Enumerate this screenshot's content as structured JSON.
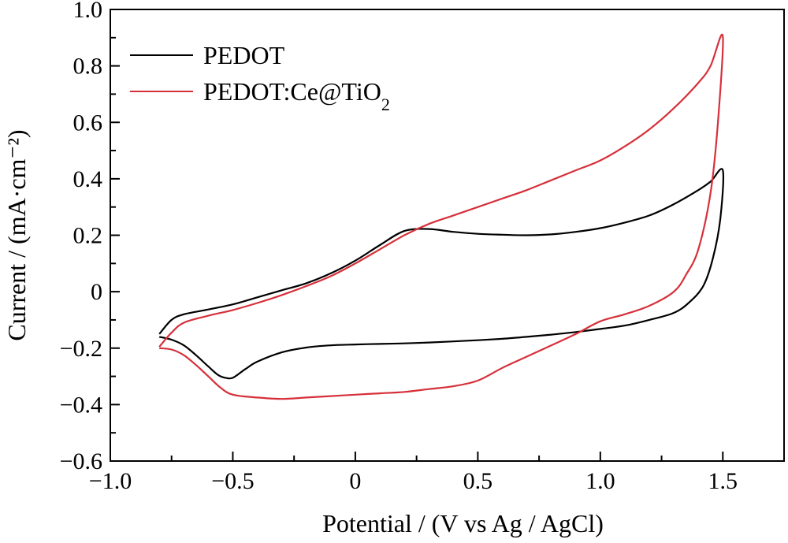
{
  "chart_data": {
    "type": "line",
    "title": "",
    "xlabel": "Potential / (V vs Ag / AgCl)",
    "ylabel": "Current / (mA·cm⁻²)",
    "xlim": [
      -1.0,
      1.75
    ],
    "ylim": [
      -0.6,
      1.0
    ],
    "xticks": [
      -1.0,
      -0.5,
      0,
      0.5,
      1.0,
      1.5
    ],
    "xtick_labels": [
      "−1.0",
      "−0.5",
      "0",
      "0.5",
      "1.0",
      "1.5"
    ],
    "yticks": [
      -0.6,
      -0.4,
      -0.2,
      0,
      0.2,
      0.4,
      0.6,
      0.8,
      1.0
    ],
    "ytick_labels": [
      "−0.6",
      "−0.4",
      "−0.2",
      "0",
      "0.2",
      "0.4",
      "0.6",
      "0.8",
      "1.0"
    ],
    "grid": false,
    "legend_position": "top-left",
    "series": [
      {
        "name": "PEDOT",
        "color": "#000000",
        "points": [
          [
            -0.8,
            -0.15
          ],
          [
            -0.75,
            -0.1
          ],
          [
            -0.7,
            -0.08
          ],
          [
            -0.6,
            -0.063
          ],
          [
            -0.5,
            -0.045
          ],
          [
            -0.4,
            -0.02
          ],
          [
            -0.3,
            0.005
          ],
          [
            -0.2,
            0.03
          ],
          [
            -0.1,
            0.065
          ],
          [
            0.0,
            0.11
          ],
          [
            0.1,
            0.165
          ],
          [
            0.2,
            0.215
          ],
          [
            0.3,
            0.222
          ],
          [
            0.4,
            0.212
          ],
          [
            0.5,
            0.205
          ],
          [
            0.6,
            0.202
          ],
          [
            0.7,
            0.2
          ],
          [
            0.8,
            0.203
          ],
          [
            0.9,
            0.212
          ],
          [
            1.0,
            0.225
          ],
          [
            1.1,
            0.245
          ],
          [
            1.2,
            0.27
          ],
          [
            1.3,
            0.31
          ],
          [
            1.4,
            0.36
          ],
          [
            1.45,
            0.39
          ],
          [
            1.5,
            0.43
          ],
          [
            1.49,
            0.26
          ],
          [
            1.46,
            0.12
          ],
          [
            1.42,
            0.02
          ],
          [
            1.36,
            -0.04
          ],
          [
            1.3,
            -0.075
          ],
          [
            1.2,
            -0.1
          ],
          [
            1.1,
            -0.12
          ],
          [
            1.0,
            -0.132
          ],
          [
            0.9,
            -0.143
          ],
          [
            0.8,
            -0.152
          ],
          [
            0.7,
            -0.16
          ],
          [
            0.6,
            -0.167
          ],
          [
            0.5,
            -0.172
          ],
          [
            0.4,
            -0.176
          ],
          [
            0.3,
            -0.18
          ],
          [
            0.2,
            -0.183
          ],
          [
            0.1,
            -0.185
          ],
          [
            0.0,
            -0.187
          ],
          [
            -0.1,
            -0.19
          ],
          [
            -0.2,
            -0.198
          ],
          [
            -0.3,
            -0.215
          ],
          [
            -0.4,
            -0.248
          ],
          [
            -0.45,
            -0.275
          ],
          [
            -0.5,
            -0.305
          ],
          [
            -0.53,
            -0.305
          ],
          [
            -0.56,
            -0.295
          ],
          [
            -0.6,
            -0.265
          ],
          [
            -0.65,
            -0.225
          ],
          [
            -0.7,
            -0.19
          ],
          [
            -0.75,
            -0.17
          ],
          [
            -0.8,
            -0.16
          ]
        ]
      },
      {
        "name": "PEDOT:Ce@TiO₂",
        "color": "#d6303a",
        "points": [
          [
            -0.8,
            -0.195
          ],
          [
            -0.75,
            -0.145
          ],
          [
            -0.7,
            -0.11
          ],
          [
            -0.6,
            -0.085
          ],
          [
            -0.5,
            -0.065
          ],
          [
            -0.4,
            -0.04
          ],
          [
            -0.3,
            -0.012
          ],
          [
            -0.2,
            0.02
          ],
          [
            -0.1,
            0.055
          ],
          [
            0.0,
            0.1
          ],
          [
            0.1,
            0.15
          ],
          [
            0.2,
            0.2
          ],
          [
            0.3,
            0.24
          ],
          [
            0.4,
            0.27
          ],
          [
            0.5,
            0.3
          ],
          [
            0.6,
            0.33
          ],
          [
            0.7,
            0.36
          ],
          [
            0.8,
            0.395
          ],
          [
            0.9,
            0.43
          ],
          [
            1.0,
            0.465
          ],
          [
            1.1,
            0.515
          ],
          [
            1.2,
            0.575
          ],
          [
            1.3,
            0.65
          ],
          [
            1.4,
            0.74
          ],
          [
            1.45,
            0.8
          ],
          [
            1.5,
            0.905
          ],
          [
            1.48,
            0.6
          ],
          [
            1.45,
            0.35
          ],
          [
            1.4,
            0.15
          ],
          [
            1.35,
            0.06
          ],
          [
            1.3,
            0.0
          ],
          [
            1.2,
            -0.05
          ],
          [
            1.1,
            -0.08
          ],
          [
            1.0,
            -0.105
          ],
          [
            0.9,
            -0.15
          ],
          [
            0.8,
            -0.19
          ],
          [
            0.7,
            -0.23
          ],
          [
            0.6,
            -0.27
          ],
          [
            0.5,
            -0.315
          ],
          [
            0.4,
            -0.335
          ],
          [
            0.3,
            -0.345
          ],
          [
            0.2,
            -0.355
          ],
          [
            0.1,
            -0.36
          ],
          [
            0.0,
            -0.365
          ],
          [
            -0.1,
            -0.37
          ],
          [
            -0.2,
            -0.375
          ],
          [
            -0.3,
            -0.38
          ],
          [
            -0.4,
            -0.375
          ],
          [
            -0.5,
            -0.365
          ],
          [
            -0.55,
            -0.34
          ],
          [
            -0.6,
            -0.3
          ],
          [
            -0.65,
            -0.26
          ],
          [
            -0.7,
            -0.225
          ],
          [
            -0.75,
            -0.205
          ],
          [
            -0.8,
            -0.2
          ]
        ]
      }
    ]
  }
}
